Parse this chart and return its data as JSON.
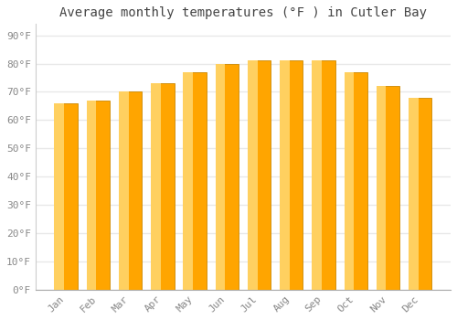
{
  "title": "Average monthly temperatures (°F ) in Cutler Bay",
  "months": [
    "Jan",
    "Feb",
    "Mar",
    "Apr",
    "May",
    "Jun",
    "Jul",
    "Aug",
    "Sep",
    "Oct",
    "Nov",
    "Dec"
  ],
  "values": [
    66,
    67,
    70,
    73,
    77,
    80,
    81,
    81,
    81,
    77,
    72,
    68
  ],
  "bar_color_main": "#FFA500",
  "bar_color_left": "#FFD060",
  "bar_edge_color": "#CC8800",
  "background_color": "#FFFFFF",
  "plot_bg_color": "#FFFFFF",
  "grid_color": "#E8E8E8",
  "text_color": "#888888",
  "yticks": [
    0,
    10,
    20,
    30,
    40,
    50,
    60,
    70,
    80,
    90
  ],
  "ylim": [
    0,
    94
  ],
  "title_fontsize": 10,
  "tick_fontsize": 8,
  "font_family": "monospace"
}
